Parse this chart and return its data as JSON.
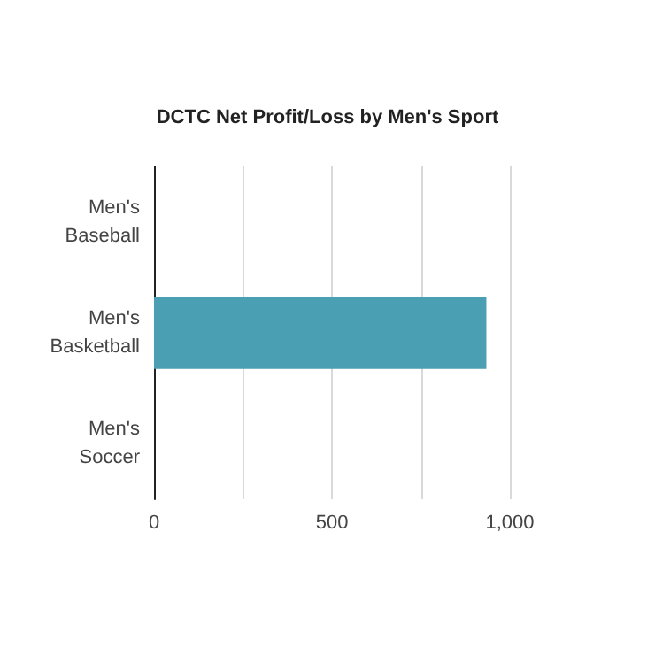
{
  "chart_data": {
    "type": "bar",
    "orientation": "horizontal",
    "title": "DCTC Net Profit/Loss by Men's Sport",
    "categories": [
      "Men's\nBaseball",
      "Men's\nBasketball",
      "Men's\nSoccer"
    ],
    "values": [
      0,
      934,
      0
    ],
    "color": "#4a9fb2",
    "xlim": [
      0,
      1000
    ],
    "xticks": [
      0,
      {
        "value": 250,
        "label": null
      },
      500,
      {
        "value": 750,
        "label": null
      },
      {
        "value": 1000,
        "label": "1,000"
      }
    ],
    "grid": "x"
  }
}
